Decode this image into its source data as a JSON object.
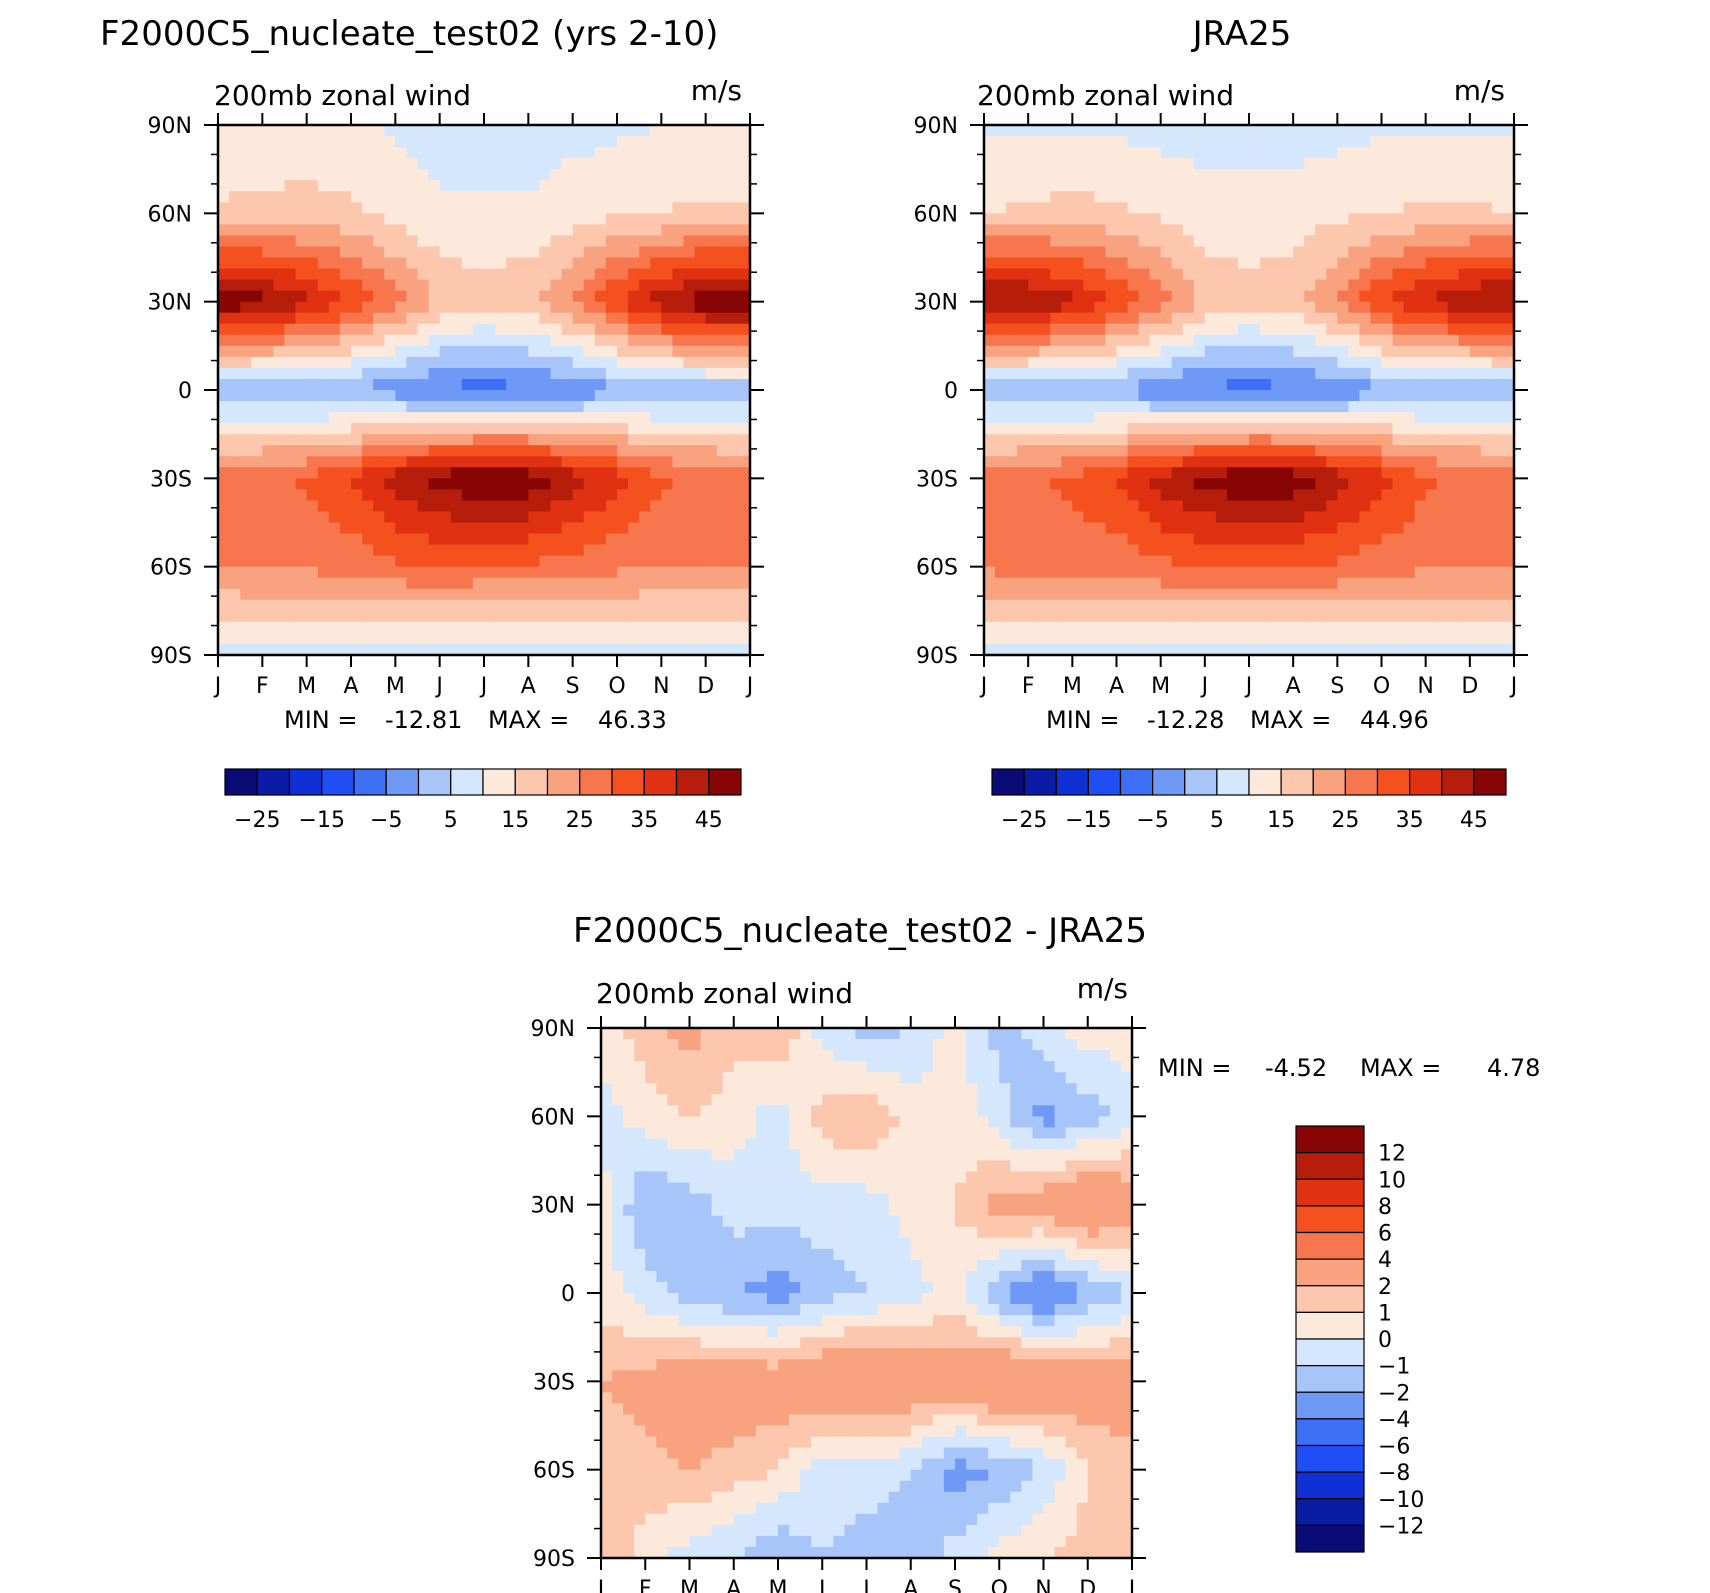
{
  "panels": [
    {
      "title": "F2000C5_nucleate_test02 (yrs 2-10)",
      "left_label": "200mb zonal wind",
      "right_label": "m/s",
      "stats": {
        "min_label": "MIN =",
        "min": "-12.81",
        "max_label": "MAX =",
        "max": "46.33"
      },
      "min_value": -12.81,
      "max_value": 46.33
    },
    {
      "title": "JRA25",
      "left_label": "200mb zonal wind",
      "right_label": "m/s",
      "stats": {
        "min_label": "MIN =",
        "min": "-12.28",
        "max_label": "MAX =",
        "max": "44.96"
      },
      "min_value": -12.28,
      "max_value": 44.96
    },
    {
      "title": "F2000C5_nucleate_test02 - JRA25",
      "left_label": "200mb zonal wind",
      "right_label": "m/s",
      "stats": {
        "min_label": "MIN =",
        "min": "-4.52",
        "max_label": "MAX =",
        "max": "4.78"
      },
      "min_value": -4.52,
      "max_value": 4.78
    }
  ],
  "chart_data": [
    {
      "type": "heatmap",
      "title": "F2000C5_nucleate_test02 (yrs 2-10)",
      "variable": "200mb zonal wind",
      "units": "m/s",
      "x": [
        "J",
        "F",
        "M",
        "A",
        "M",
        "J",
        "J",
        "A",
        "S",
        "O",
        "N",
        "D",
        "J"
      ],
      "y": [
        "90N",
        "60N",
        "30N",
        "0",
        "30S",
        "60S",
        "90S"
      ],
      "y_values": [
        90,
        60,
        30,
        0,
        -30,
        -60,
        -90
      ],
      "z": [
        [
          5,
          5,
          6,
          6,
          4,
          2,
          2,
          2,
          3,
          4,
          5,
          5,
          5
        ],
        [
          11,
          12,
          12,
          11,
          8,
          6,
          6,
          6,
          8,
          9,
          10,
          11,
          11
        ],
        [
          44,
          42,
          36,
          30,
          22,
          14,
          12,
          14,
          20,
          30,
          38,
          44,
          44
        ],
        [
          -4,
          -5,
          -5,
          -6,
          -8,
          -11,
          -12,
          -11,
          -9,
          -6,
          -5,
          -4,
          -4
        ],
        [
          22,
          24,
          26,
          30,
          38,
          42,
          46,
          44,
          38,
          32,
          26,
          24,
          22
        ],
        [
          20,
          21,
          21,
          22,
          24,
          25,
          24,
          24,
          23,
          21,
          20,
          20,
          20
        ],
        [
          3,
          3,
          3,
          3,
          2,
          2,
          2,
          2,
          3,
          3,
          3,
          3,
          3
        ]
      ],
      "min": -12.81,
      "max": 46.33,
      "colorbar": {
        "ticks": [
          "-25",
          "-15",
          "-5",
          "5",
          "15",
          "25",
          "35",
          "45"
        ]
      }
    },
    {
      "type": "heatmap",
      "title": "JRA25",
      "variable": "200mb zonal wind",
      "units": "m/s",
      "x": [
        "J",
        "F",
        "M",
        "A",
        "M",
        "J",
        "J",
        "A",
        "S",
        "O",
        "N",
        "D",
        "J"
      ],
      "y": [
        "90N",
        "60N",
        "30N",
        "0",
        "30S",
        "60S",
        "90S"
      ],
      "y_values": [
        90,
        60,
        30,
        0,
        -30,
        -60,
        -90
      ],
      "z": [
        [
          4,
          4,
          4,
          4,
          3,
          3,
          3,
          3,
          3,
          4,
          4,
          4,
          4
        ],
        [
          10,
          11,
          12,
          11,
          9,
          7,
          7,
          7,
          9,
          10,
          11,
          11,
          10
        ],
        [
          42,
          41,
          36,
          30,
          22,
          14,
          12,
          14,
          20,
          30,
          36,
          40,
          42
        ],
        [
          -4,
          -4,
          -5,
          -6,
          -9,
          -11,
          -12,
          -11,
          -9,
          -6,
          -5,
          -4,
          -4
        ],
        [
          22,
          24,
          26,
          30,
          37,
          42,
          45,
          44,
          38,
          32,
          26,
          24,
          22
        ],
        [
          21,
          22,
          22,
          22,
          24,
          25,
          25,
          25,
          24,
          22,
          21,
          21,
          21
        ],
        [
          3,
          3,
          3,
          3,
          3,
          2,
          2,
          2,
          3,
          3,
          3,
          3,
          3
        ]
      ],
      "min": -12.28,
      "max": 44.96,
      "colorbar": {
        "ticks": [
          "-25",
          "-15",
          "-5",
          "5",
          "15",
          "25",
          "35",
          "45"
        ]
      }
    },
    {
      "type": "heatmap",
      "title": "F2000C5_nucleate_test02 - JRA25",
      "variable": "200mb zonal wind",
      "units": "m/s",
      "x": [
        "J",
        "F",
        "M",
        "A",
        "M",
        "J",
        "J",
        "A",
        "S",
        "O",
        "N",
        "D",
        "J"
      ],
      "y": [
        "90N",
        "60N",
        "30N",
        "0",
        "30S",
        "60S",
        "90S"
      ],
      "y_values": [
        90,
        60,
        30,
        0,
        -30,
        -60,
        -90
      ],
      "z": [
        [
          0.5,
          1.5,
          2.5,
          1.2,
          2.0,
          -0.5,
          -1.5,
          -1.0,
          0.5,
          -1.5,
          -0.5,
          0.5,
          0.5
        ],
        [
          -0.5,
          0.5,
          1.0,
          0.5,
          -0.5,
          1.5,
          2.0,
          0.5,
          0.5,
          -0.5,
          -2.5,
          -1.5,
          -0.5
        ],
        [
          0.5,
          -2.0,
          -1.5,
          -0.5,
          -0.5,
          -0.5,
          -0.5,
          0.5,
          1.0,
          2.5,
          3.0,
          4.0,
          3.0
        ],
        [
          0.5,
          -0.5,
          -1.5,
          -2.0,
          -2.5,
          -1.5,
          -1.0,
          -0.5,
          0.5,
          -2.0,
          -3.5,
          -2.0,
          -1.0
        ],
        [
          2.0,
          2.5,
          3.0,
          3.0,
          3.0,
          3.5,
          4.0,
          3.5,
          3.0,
          4.0,
          3.5,
          3.0,
          3.0
        ],
        [
          1.5,
          1.5,
          2.0,
          1.5,
          1.0,
          -0.5,
          -0.5,
          -1.0,
          -2.5,
          -2.0,
          -1.0,
          1.0,
          1.5
        ],
        [
          2.0,
          0.5,
          -0.5,
          -1.0,
          -2.0,
          -1.0,
          -1.5,
          -2.0,
          -0.5,
          0.5,
          1.0,
          1.5,
          2.0
        ]
      ],
      "min": -4.52,
      "max": 4.78,
      "colorbar": {
        "ticks": [
          "12",
          "10",
          "8",
          "6",
          "4",
          "2",
          "1",
          "0",
          "-1",
          "-2",
          "-4",
          "-6",
          "-8",
          "-10",
          "-12"
        ]
      }
    }
  ],
  "colors": {
    "abs_palette": [
      "#0b0b77",
      "#0a1ba6",
      "#0f30d4",
      "#1f4ef4",
      "#3d70f6",
      "#6f99f7",
      "#a8c5fa",
      "#d5e7fd",
      "#fde9dc",
      "#fcc7ad",
      "#f9a27f",
      "#f7764d",
      "#f4511f",
      "#e03212",
      "#b61d0a",
      "#880505"
    ],
    "diff_palette": [
      "#0b0b77",
      "#0a1ba6",
      "#0f30d4",
      "#1f4ef4",
      "#3d70f6",
      "#6f99f7",
      "#a8c5fa",
      "#d5e7fd",
      "#fde9dc",
      "#fcc7ad",
      "#f9a27f",
      "#f7764d",
      "#f4511f",
      "#e03212",
      "#b61d0a",
      "#880505"
    ]
  }
}
